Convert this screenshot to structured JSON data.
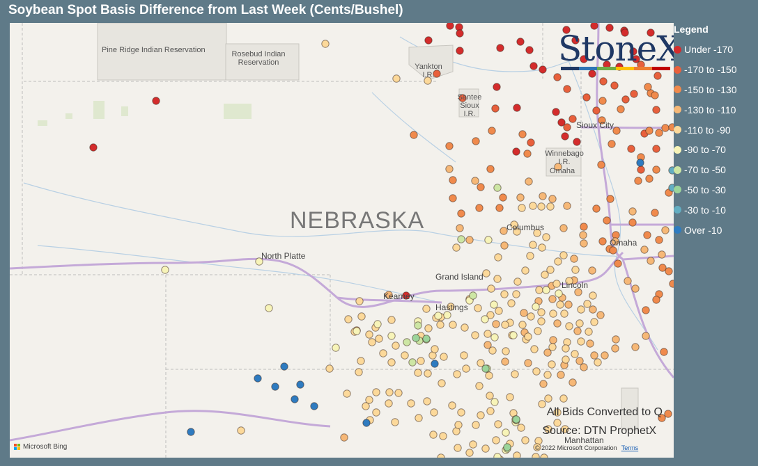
{
  "title": "Soybean Spot Basis Difference from Last Week (Cents/Bushel)",
  "legend": {
    "title": "Legend",
    "items": [
      {
        "label": "Under -170",
        "color": "#d42c2c"
      },
      {
        "label": "-170 to -150",
        "color": "#e8603c"
      },
      {
        "label": "-150 to -130",
        "color": "#f08a4c"
      },
      {
        "label": "-130 to -110",
        "color": "#f6b877"
      },
      {
        "label": "-110 to -90",
        "color": "#fcd99a"
      },
      {
        "label": "-90 to -70",
        "color": "#f7f4b8"
      },
      {
        "label": "-70 to -50",
        "color": "#cde6a4"
      },
      {
        "label": "-50 to -30",
        "color": "#9bd49a"
      },
      {
        "label": "-30 to -10",
        "color": "#63aec2"
      },
      {
        "label": "Over -10",
        "color": "#2e7bc0"
      }
    ]
  },
  "logo": {
    "text": "StoneX",
    "bar_colors": [
      "#1f3864",
      "#2f75b5",
      "#70ad47",
      "#ffc000",
      "#ed7d31",
      "#c00000"
    ]
  },
  "map": {
    "state_label": "NEBRASKA",
    "cities": [
      "North Platte",
      "Grand Island",
      "Kearney",
      "Hastings",
      "Columbus",
      "Omaha",
      "Lincoln",
      "Sioux City",
      "Manhattan"
    ],
    "reservations": [
      "Pine Ridge Indian Reservation",
      "Rosebud Indian Reservation",
      "Yankton I.R.",
      "Santee Sioux I.R.",
      "Winnebago I.R.",
      "Omaha"
    ],
    "notes": [
      "All Bids Converted to Q",
      "Source: DTN ProphetX"
    ],
    "attribution": "Microsoft Bing",
    "copyright": "© 2022 Microsoft Corporation",
    "terms": "Terms"
  }
}
